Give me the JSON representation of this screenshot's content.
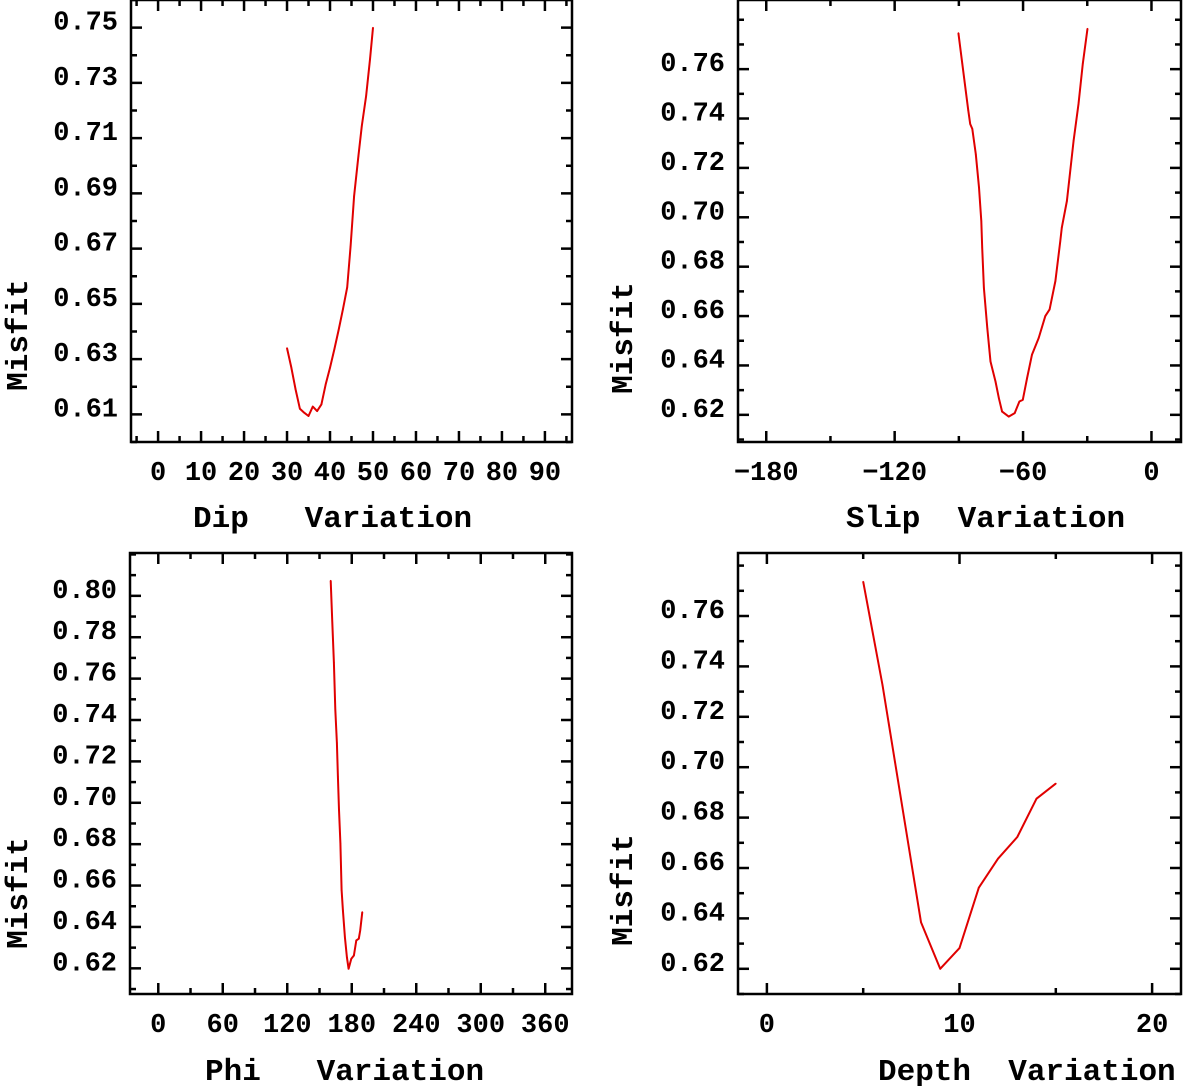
{
  "chart_data": [
    {
      "type": "line",
      "title": "",
      "xlabel": "Dip   Variation",
      "ylabel": "Misfit",
      "xlim": [
        -6.3,
        96.3
      ],
      "ylim": [
        0.6,
        0.76
      ],
      "xticks": [
        {
          "value": 0,
          "label": "0"
        },
        {
          "value": 10,
          "label": "10"
        },
        {
          "value": 20,
          "label": "20"
        },
        {
          "value": 30,
          "label": "30"
        },
        {
          "value": 40,
          "label": "40"
        },
        {
          "value": 50,
          "label": "50"
        },
        {
          "value": 60,
          "label": "60"
        },
        {
          "value": 70,
          "label": "70"
        },
        {
          "value": 80,
          "label": "80"
        },
        {
          "value": 90,
          "label": "90"
        }
      ],
      "x_minor_step": 5,
      "yticks": [
        {
          "value": 0.61,
          "label": "0.61"
        },
        {
          "value": 0.63,
          "label": "0.63"
        },
        {
          "value": 0.65,
          "label": "0.65"
        },
        {
          "value": 0.67,
          "label": "0.67"
        },
        {
          "value": 0.69,
          "label": "0.69"
        },
        {
          "value": 0.71,
          "label": "0.71"
        },
        {
          "value": 0.73,
          "label": "0.73"
        },
        {
          "value": 0.75,
          "label": "0.75"
        }
      ],
      "y_minor_step": 0.01,
      "grid": false,
      "series": [
        {
          "name": "Dip",
          "color": "#e00000",
          "x": [
            30,
            31,
            32,
            33,
            34,
            35,
            36,
            37,
            38,
            39,
            40,
            41,
            42,
            43,
            44,
            44.8,
            45.6,
            46.6,
            47.4,
            48.4,
            49.3,
            50
          ],
          "y": [
            0.634,
            0.627,
            0.619,
            0.612,
            0.6106,
            0.6094,
            0.6128,
            0.6112,
            0.6136,
            0.6209,
            0.6269,
            0.6335,
            0.6405,
            0.648,
            0.656,
            0.6709,
            0.689,
            0.7035,
            0.7144,
            0.7252,
            0.7385,
            0.75
          ]
        }
      ]
    },
    {
      "type": "line",
      "title": "",
      "xlabel": "Slip  Variation",
      "ylabel": "Misfit",
      "xlim": [
        -193.2,
        13.8
      ],
      "ylim": [
        0.609,
        0.788
      ],
      "xticks": [
        {
          "value": -180,
          "label": "−180"
        },
        {
          "value": -120,
          "label": "−120"
        },
        {
          "value": -60,
          "label": "−60"
        },
        {
          "value": 0,
          "label": "0"
        }
      ],
      "x_minor_step": 30,
      "yticks": [
        {
          "value": 0.62,
          "label": "0.62"
        },
        {
          "value": 0.64,
          "label": "0.64"
        },
        {
          "value": 0.66,
          "label": "0.66"
        },
        {
          "value": 0.68,
          "label": "0.68"
        },
        {
          "value": 0.7,
          "label": "0.70"
        },
        {
          "value": 0.72,
          "label": "0.72"
        },
        {
          "value": 0.74,
          "label": "0.74"
        },
        {
          "value": 0.76,
          "label": "0.76"
        }
      ],
      "y_minor_step": 0.01,
      "grid": false,
      "series": [
        {
          "name": "Slip",
          "color": "#e00000",
          "x": [
            -90.2,
            -88.4,
            -86.8,
            -85.6,
            -84.7,
            -83.7,
            -82.1,
            -80.6,
            -79.5,
            -79.1,
            -78.3,
            -76.7,
            -75.2,
            -72.9,
            -71.3,
            -69.8,
            -66.7,
            -63.9,
            -61.7,
            -60.1,
            -58.1,
            -55.8,
            -52.7,
            -49.6,
            -47.6,
            -44.9,
            -42.6,
            -41.9,
            -39.5,
            -36.4,
            -34.1,
            -32.1,
            -29.9
          ],
          "y": [
            0.7746,
            0.7622,
            0.7514,
            0.7432,
            0.7378,
            0.7358,
            0.7256,
            0.7121,
            0.6985,
            0.6876,
            0.6714,
            0.6551,
            0.6416,
            0.6335,
            0.6267,
            0.6213,
            0.6193,
            0.6207,
            0.6254,
            0.6261,
            0.6349,
            0.6444,
            0.6511,
            0.66,
            0.6627,
            0.6742,
            0.6904,
            0.6958,
            0.7066,
            0.731,
            0.7459,
            0.7622,
            0.7764
          ]
        }
      ]
    },
    {
      "type": "line",
      "title": "",
      "xlabel": "Phi   Variation",
      "ylabel": "Misfit",
      "xlim": [
        -26.3,
        384.9
      ],
      "ylim": [
        0.6076,
        0.8207
      ],
      "xticks": [
        {
          "value": 0,
          "label": "0"
        },
        {
          "value": 60,
          "label": "60"
        },
        {
          "value": 120,
          "label": "120"
        },
        {
          "value": 180,
          "label": "180"
        },
        {
          "value": 240,
          "label": "240"
        },
        {
          "value": 300,
          "label": "300"
        },
        {
          "value": 360,
          "label": "360"
        }
      ],
      "x_minor_step": 30,
      "yticks": [
        {
          "value": 0.62,
          "label": "0.62"
        },
        {
          "value": 0.64,
          "label": "0.64"
        },
        {
          "value": 0.66,
          "label": "0.66"
        },
        {
          "value": 0.68,
          "label": "0.68"
        },
        {
          "value": 0.7,
          "label": "0.70"
        },
        {
          "value": 0.72,
          "label": "0.72"
        },
        {
          "value": 0.74,
          "label": "0.74"
        },
        {
          "value": 0.76,
          "label": "0.76"
        },
        {
          "value": 0.78,
          "label": "0.78"
        },
        {
          "value": 0.8,
          "label": "0.80"
        }
      ],
      "y_minor_step": 0.01,
      "grid": false,
      "series": [
        {
          "name": "Phi",
          "color": "#e00000",
          "x": [
            160.4,
            161.9,
            163.4,
            164.7,
            166.2,
            167.1,
            168.1,
            169.4,
            170.6,
            171.8,
            173.6,
            175.5,
            177.1,
            179.6,
            182.0,
            184.2,
            186.6,
            187.9,
            189.8
          ],
          "y": [
            0.8073,
            0.7871,
            0.7677,
            0.7451,
            0.7289,
            0.7128,
            0.6966,
            0.6804,
            0.6578,
            0.6481,
            0.6351,
            0.6254,
            0.6198,
            0.6246,
            0.6262,
            0.6335,
            0.6343,
            0.6383,
            0.6472
          ]
        }
      ]
    },
    {
      "type": "line",
      "title": "",
      "xlabel": "Depth  Variation",
      "ylabel": "Misfit",
      "xlim": [
        -1.5,
        21.5
      ],
      "ylim": [
        0.61,
        0.785
      ],
      "xticks": [
        {
          "value": 0,
          "label": "0"
        },
        {
          "value": 10,
          "label": "10"
        },
        {
          "value": 20,
          "label": "20"
        }
      ],
      "x_minor_step": 5,
      "yticks": [
        {
          "value": 0.62,
          "label": "0.62"
        },
        {
          "value": 0.64,
          "label": "0.64"
        },
        {
          "value": 0.66,
          "label": "0.66"
        },
        {
          "value": 0.68,
          "label": "0.68"
        },
        {
          "value": 0.7,
          "label": "0.70"
        },
        {
          "value": 0.72,
          "label": "0.72"
        },
        {
          "value": 0.74,
          "label": "0.74"
        },
        {
          "value": 0.76,
          "label": "0.76"
        }
      ],
      "y_minor_step": 0.01,
      "grid": false,
      "series": [
        {
          "name": "Depth",
          "color": "#e00000",
          "x": [
            5,
            6,
            8,
            9,
            10,
            11,
            12,
            13,
            14,
            15
          ],
          "y": [
            0.7736,
            0.7326,
            0.6385,
            0.62,
            0.6282,
            0.6522,
            0.6637,
            0.6723,
            0.6875,
            0.6935
          ]
        }
      ]
    }
  ]
}
